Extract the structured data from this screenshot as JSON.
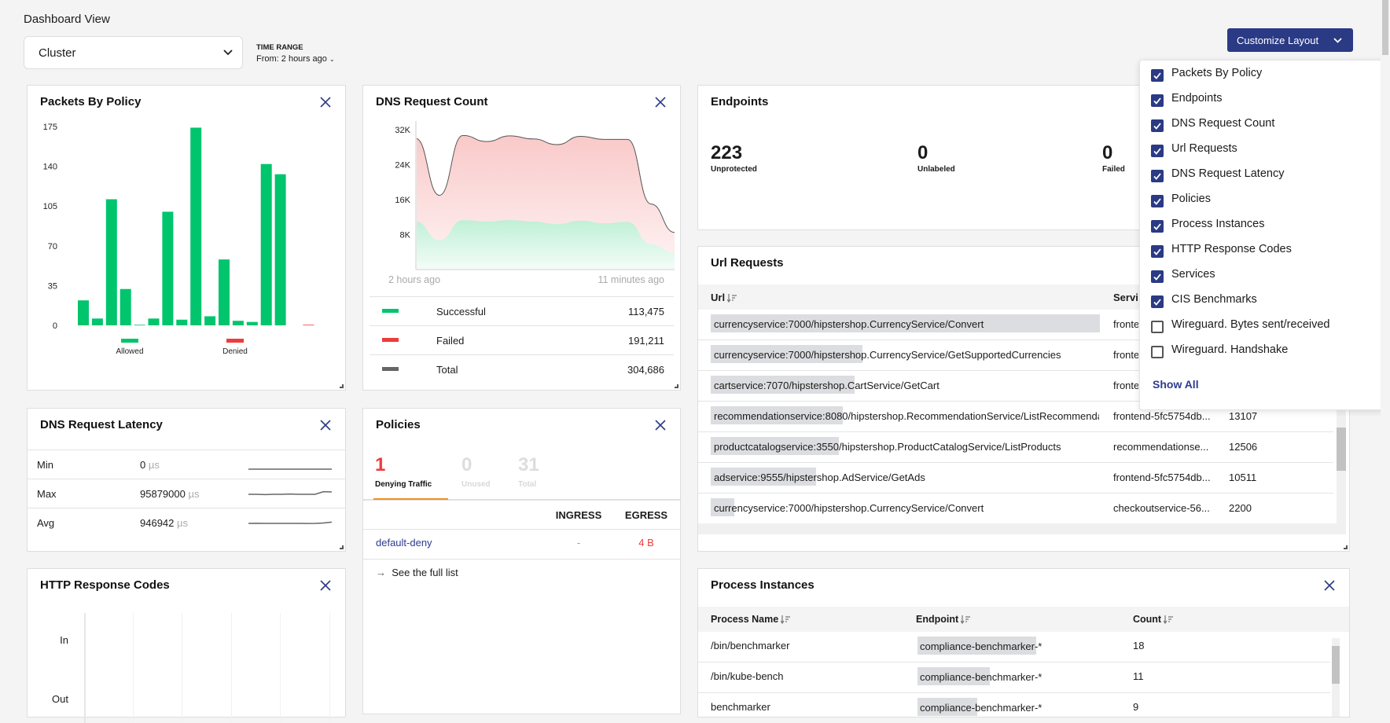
{
  "header": {
    "title": "Dashboard View",
    "view_select": "Cluster",
    "time_range_label": "TIME RANGE",
    "time_range_value": "From: 2 hours ago",
    "customize_button": "Customize Layout"
  },
  "colors": {
    "accent": "#2a3a84",
    "allowed": "#00c56c",
    "denied": "#ef3b3b",
    "total": "#666666",
    "tab_underline": "#f39020",
    "link": "#2d3b8f"
  },
  "customize_menu": {
    "items": [
      {
        "label": "Packets By Policy",
        "checked": true
      },
      {
        "label": "Endpoints",
        "checked": true
      },
      {
        "label": "DNS Request Count",
        "checked": true
      },
      {
        "label": "Url Requests",
        "checked": true
      },
      {
        "label": "DNS Request Latency",
        "checked": true
      },
      {
        "label": "Policies",
        "checked": true
      },
      {
        "label": "Process Instances",
        "checked": true
      },
      {
        "label": "HTTP Response Codes",
        "checked": true
      },
      {
        "label": "Services",
        "checked": true
      },
      {
        "label": "CIS Benchmarks",
        "checked": true
      },
      {
        "label": "Wireguard. Bytes sent/received",
        "checked": false
      },
      {
        "label": "Wireguard. Handshake",
        "checked": false
      }
    ],
    "show_all": "Show All"
  },
  "packets": {
    "title": "Packets By Policy"
  },
  "dns_count": {
    "title": "DNS Request Count",
    "x_start": "2 hours ago",
    "x_end": "11 minutes ago",
    "legend": [
      {
        "label": "Successful",
        "value": "113,475",
        "color": "#00c56c"
      },
      {
        "label": "Failed",
        "value": "191,211",
        "color": "#ef3b3b"
      },
      {
        "label": "Total",
        "value": "304,686",
        "color": "#666666"
      }
    ]
  },
  "endpoints": {
    "title": "Endpoints",
    "stats": [
      {
        "value": "223",
        "label": "Unprotected"
      },
      {
        "value": "0",
        "label": "Unlabeled"
      },
      {
        "value": "0",
        "label": "Failed"
      }
    ]
  },
  "url_requests": {
    "title": "Url Requests",
    "columns": [
      "Url",
      "Service"
    ],
    "rows": [
      {
        "url": "currencyservice:7000/hipstershop.CurrencyService/Convert",
        "service": "frontend-5fc5754db...",
        "count": "",
        "bar": 1.0
      },
      {
        "url": "currencyservice:7000/hipstershop.CurrencyService/GetSupportedCurrencies",
        "service": "frontend-5fc5754db...",
        "count": "",
        "bar": 0.39
      },
      {
        "url": "cartservice:7070/hipstershop.CartService/GetCart",
        "service": "frontend-5fc5754db...",
        "count": "",
        "bar": 0.37
      },
      {
        "url": "recommendationservice:8080/hipstershop.RecommendationService/ListRecommendations",
        "service": "frontend-5fc5754db...",
        "count": "13107",
        "bar": 0.34
      },
      {
        "url": "productcatalogservice:3550/hipstershop.ProductCatalogService/ListProducts",
        "service": "recommendationse...",
        "count": "12506",
        "bar": 0.33
      },
      {
        "url": "adservice:9555/hipstershop.AdService/GetAds",
        "service": "frontend-5fc5754db...",
        "count": "10511",
        "bar": 0.27
      },
      {
        "url": "currencyservice:7000/hipstershop.CurrencyService/Convert",
        "service": "checkoutservice-56...",
        "count": "2200",
        "bar": 0.06
      }
    ]
  },
  "latency": {
    "title": "DNS Request Latency",
    "unit": "µs",
    "rows": [
      {
        "label": "Min",
        "value": "0",
        "trend": [
          0,
          0,
          0,
          0,
          0,
          0,
          0,
          0,
          0,
          0
        ]
      },
      {
        "label": "Max",
        "value": "95879000",
        "trend": [
          3,
          3,
          2.8,
          3,
          3,
          3.2,
          3,
          3,
          3,
          5,
          4.8
        ]
      },
      {
        "label": "Avg",
        "value": "946942",
        "trend": [
          3,
          3.1,
          3,
          3,
          3,
          3,
          3,
          2.9,
          3,
          3.3,
          4
        ]
      }
    ]
  },
  "policies": {
    "title": "Policies",
    "tabs": [
      {
        "value": "1",
        "label": "Denying Traffic",
        "active": true
      },
      {
        "value": "0",
        "label": "Unused",
        "active": false
      },
      {
        "value": "31",
        "label": "Total",
        "active": false
      }
    ],
    "columns": [
      "INGRESS",
      "EGRESS"
    ],
    "rows": [
      {
        "name": "default-deny",
        "ingress": "-",
        "egress": "4 B"
      }
    ],
    "see_full_list": "See the full list"
  },
  "http_codes": {
    "title": "HTTP Response Codes",
    "rows": [
      "In",
      "Out"
    ]
  },
  "process_instances": {
    "title": "Process Instances",
    "columns": [
      "Process Name",
      "Endpoint",
      "Count"
    ],
    "rows": [
      {
        "process": "/bin/benchmarker",
        "endpoint": "compliance-benchmarker-*",
        "count": "18",
        "bar": 1.0
      },
      {
        "process": "/bin/kube-bench",
        "endpoint": "compliance-benchmarker-*",
        "count": "11",
        "bar": 0.61
      },
      {
        "process": "benchmarker",
        "endpoint": "compliance-benchmarker-*",
        "count": "9",
        "bar": 0.5
      }
    ]
  },
  "chart_data": [
    {
      "type": "bar",
      "title": "Packets By Policy",
      "yticks": [
        0,
        35,
        70,
        105,
        140,
        175
      ],
      "ylim": [
        0,
        175
      ],
      "legend": "bottom",
      "series": [
        {
          "name": "Allowed",
          "color": "#00c56c",
          "values": [
            22,
            6,
            111,
            32,
            0.5,
            6,
            100,
            5,
            174,
            8,
            58,
            4,
            3,
            142,
            133,
            0,
            0
          ]
        },
        {
          "name": "Denied",
          "color": "#ef3b3b",
          "values": [
            0,
            0,
            0,
            0,
            0,
            0,
            0,
            0,
            0,
            0,
            0,
            0,
            0,
            0,
            0,
            0,
            0.5
          ]
        }
      ]
    },
    {
      "type": "area",
      "title": "DNS Request Count",
      "yticks": [
        "8K",
        "16K",
        "24K",
        "32K"
      ],
      "ytick_values": [
        8000,
        16000,
        24000,
        32000
      ],
      "ylim": [
        0,
        34000
      ],
      "x_labels": [
        "2 hours ago",
        "11 minutes ago"
      ],
      "series": [
        {
          "name": "Total",
          "values": [
            30000,
            17000,
            30700,
            29300,
            30600,
            29900,
            28600,
            30500,
            29800,
            29800,
            15000,
            8500
          ]
        },
        {
          "name": "Successful",
          "values": [
            11000,
            6700,
            11300,
            11000,
            11300,
            11000,
            10400,
            11200,
            10600,
            10900,
            5800,
            3900
          ]
        }
      ]
    }
  ]
}
